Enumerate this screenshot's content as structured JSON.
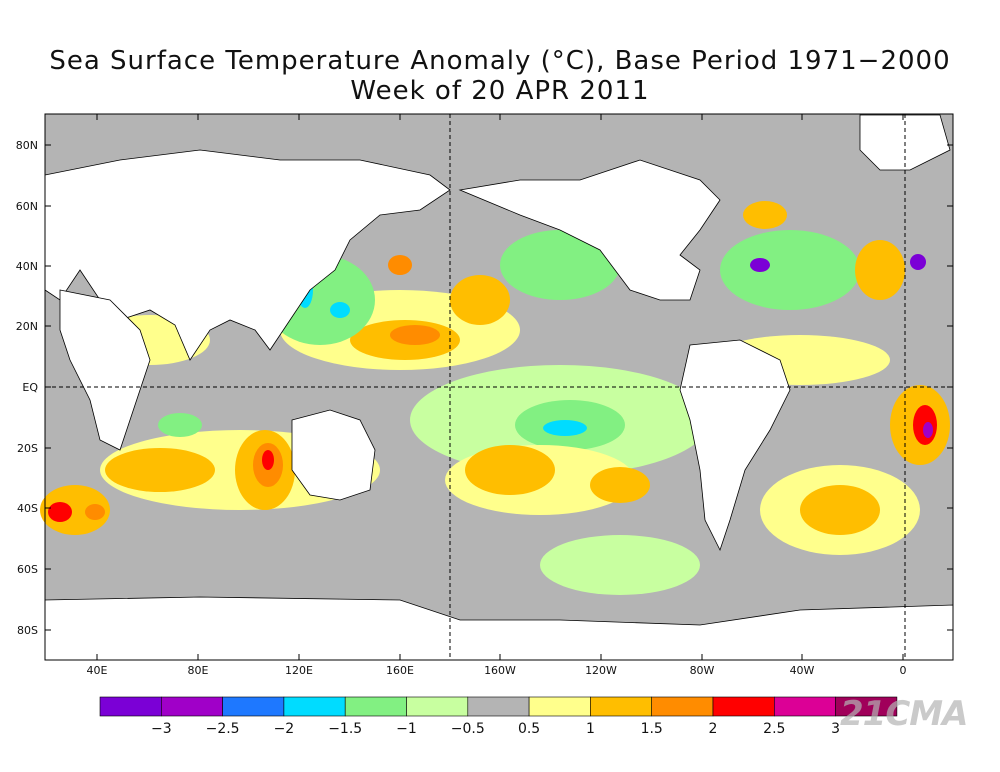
{
  "title": "Sea Surface Temperature Anomaly (°C), Base Period 1971−2000",
  "subtitle": "Week of 20 APR 2011",
  "lat_labels": [
    "80N",
    "60N",
    "40N",
    "20N",
    "EQ",
    "20S",
    "40S",
    "60S",
    "80S"
  ],
  "lon_labels": [
    "40E",
    "80E",
    "120E",
    "160E",
    "160W",
    "120W",
    "80W",
    "40W",
    "0"
  ],
  "colorbar": {
    "colors": [
      "#7b00d6",
      "#a000c8",
      "#1e78ff",
      "#00dcff",
      "#82f082",
      "#c8ffa0",
      "#b4b4b4",
      "#ffff8c",
      "#ffbe00",
      "#ff8c00",
      "#ff0000",
      "#dc0096",
      "#a0005a"
    ],
    "labels": [
      "−3",
      "−2.5",
      "−2",
      "−1.5",
      "−1",
      "−0.5",
      "0.5",
      "1",
      "1.5",
      "2",
      "2.5",
      "3"
    ]
  },
  "watermark": "21CMA",
  "colors": {
    "land": "#ffffff",
    "neutral": "#b4b4b4",
    "frame": "#000000"
  }
}
